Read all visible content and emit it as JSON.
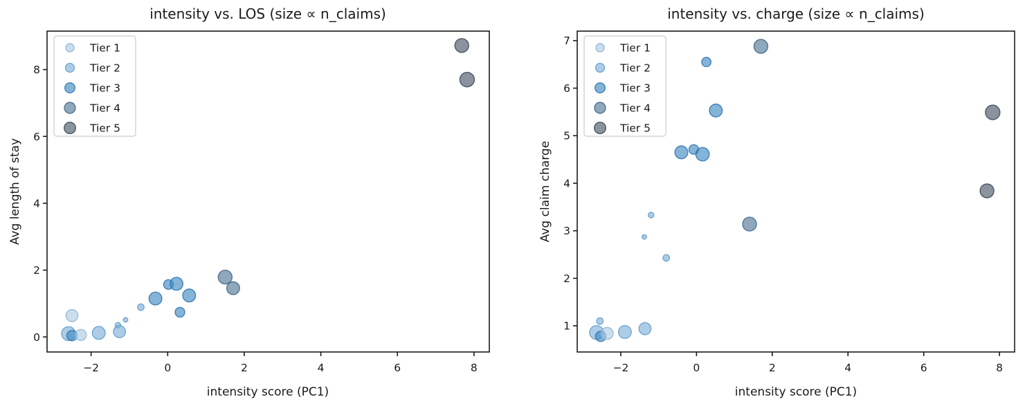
{
  "figure_background": "#ffffff",
  "tiers": [
    {
      "label": "Tier 1",
      "fill": "#abc9e2",
      "edge": "#8cb4d6",
      "legend_r": 6.0
    },
    {
      "label": "Tier 2",
      "fill": "#7aafd6",
      "edge": "#5e9bcb",
      "legend_r": 6.4
    },
    {
      "label": "Tier 3",
      "fill": "#3a86c2",
      "edge": "#2e74ad",
      "legend_r": 7.3
    },
    {
      "label": "Tier 4",
      "fill": "#4b7295",
      "edge": "#3f6485",
      "legend_r": 8.0
    },
    {
      "label": "Tier 5",
      "fill": "#425162",
      "edge": "#374656",
      "legend_r": 8.3
    }
  ],
  "marker_style": {
    "fill_opacity": 0.62,
    "stroke_opacity": 0.85,
    "stroke_width": 1.4
  },
  "chart_data": [
    {
      "type": "scatter",
      "title": "intensity vs. LOS (size ∝ n_claims)",
      "xlabel": "intensity score (PC1)",
      "ylabel": "Avg length of stay",
      "xlim": [
        -3.15,
        8.4
      ],
      "ylim": [
        -0.45,
        9.15
      ],
      "xticks": [
        -2,
        0,
        2,
        4,
        6,
        8
      ],
      "yticks": [
        0,
        2,
        4,
        6,
        8
      ],
      "grid": false,
      "legend_position": "upper left",
      "legend_labels": [
        "Tier 1",
        "Tier 2",
        "Tier 3",
        "Tier 4",
        "Tier 5"
      ],
      "points": [
        {
          "x": -2.59,
          "y": 0.1,
          "tier": 2,
          "r": 10.0
        },
        {
          "x": -2.5,
          "y": 0.04,
          "tier": 3,
          "r": 7.5
        },
        {
          "x": -2.5,
          "y": 0.64,
          "tier": 1,
          "r": 8.7
        },
        {
          "x": -2.27,
          "y": 0.06,
          "tier": 1,
          "r": 8.0
        },
        {
          "x": -1.8,
          "y": 0.12,
          "tier": 2,
          "r": 9.3
        },
        {
          "x": -1.3,
          "y": 0.35,
          "tier": 2,
          "r": 4.0
        },
        {
          "x": -1.1,
          "y": 0.51,
          "tier": 2,
          "r": 3.3
        },
        {
          "x": -1.26,
          "y": 0.16,
          "tier": 2,
          "r": 8.7
        },
        {
          "x": -0.7,
          "y": 0.89,
          "tier": 2,
          "r": 4.7
        },
        {
          "x": -0.32,
          "y": 1.15,
          "tier": 3,
          "r": 9.3
        },
        {
          "x": 0.02,
          "y": 1.57,
          "tier": 3,
          "r": 7.0
        },
        {
          "x": 0.23,
          "y": 1.59,
          "tier": 3,
          "r": 9.3
        },
        {
          "x": 0.56,
          "y": 1.24,
          "tier": 3,
          "r": 9.3
        },
        {
          "x": 0.32,
          "y": 0.74,
          "tier": 3,
          "r": 7.0
        },
        {
          "x": 1.5,
          "y": 1.79,
          "tier": 4,
          "r": 10.0
        },
        {
          "x": 1.71,
          "y": 1.46,
          "tier": 4,
          "r": 9.3
        },
        {
          "x": 7.68,
          "y": 8.72,
          "tier": 5,
          "r": 10.0
        },
        {
          "x": 7.82,
          "y": 7.7,
          "tier": 5,
          "r": 10.5
        }
      ]
    },
    {
      "type": "scatter",
      "title": "intensity vs. charge (size ∝ n_claims)",
      "xlabel": "intensity score (PC1)",
      "ylabel": "Avg claim charge",
      "xlim": [
        -3.15,
        8.4
      ],
      "ylim": [
        0.45,
        7.2
      ],
      "xticks": [
        -2,
        0,
        2,
        4,
        6,
        8
      ],
      "yticks": [
        1,
        2,
        3,
        4,
        5,
        6,
        7
      ],
      "grid": false,
      "legend_position": "upper left",
      "legend_labels": [
        "Tier 1",
        "Tier 2",
        "Tier 3",
        "Tier 4",
        "Tier 5"
      ],
      "points": [
        {
          "x": -2.64,
          "y": 0.86,
          "tier": 2,
          "r": 10.0
        },
        {
          "x": -2.53,
          "y": 0.78,
          "tier": 3,
          "r": 7.5
        },
        {
          "x": -2.55,
          "y": 1.1,
          "tier": 2,
          "r": 4.7
        },
        {
          "x": -2.36,
          "y": 0.84,
          "tier": 1,
          "r": 8.7
        },
        {
          "x": -1.89,
          "y": 0.87,
          "tier": 2,
          "r": 9.3
        },
        {
          "x": -1.36,
          "y": 0.94,
          "tier": 2,
          "r": 8.7
        },
        {
          "x": -1.38,
          "y": 2.87,
          "tier": 2,
          "r": 3.3
        },
        {
          "x": -1.2,
          "y": 3.33,
          "tier": 2,
          "r": 4.0
        },
        {
          "x": -0.8,
          "y": 2.43,
          "tier": 2,
          "r": 4.7
        },
        {
          "x": -0.4,
          "y": 4.65,
          "tier": 3,
          "r": 9.3
        },
        {
          "x": -0.07,
          "y": 4.71,
          "tier": 3,
          "r": 7.0
        },
        {
          "x": 0.16,
          "y": 4.61,
          "tier": 3,
          "r": 9.7
        },
        {
          "x": 0.51,
          "y": 5.53,
          "tier": 3,
          "r": 9.3
        },
        {
          "x": 0.26,
          "y": 6.55,
          "tier": 3,
          "r": 6.7
        },
        {
          "x": 1.4,
          "y": 3.14,
          "tier": 4,
          "r": 10.0
        },
        {
          "x": 1.7,
          "y": 6.88,
          "tier": 4,
          "r": 10.0
        },
        {
          "x": 7.82,
          "y": 5.49,
          "tier": 5,
          "r": 10.5
        },
        {
          "x": 7.67,
          "y": 3.84,
          "tier": 5,
          "r": 10.0
        }
      ]
    }
  ]
}
